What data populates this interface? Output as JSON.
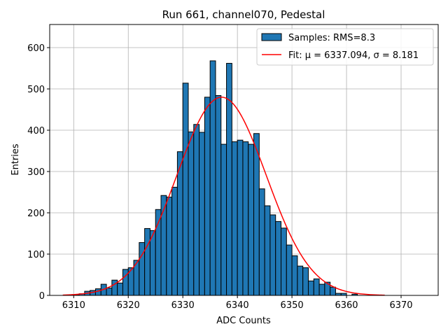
{
  "chart_data": {
    "type": "bar",
    "title": "Run 661, channel070, Pedestal",
    "xlabel": "ADC Counts",
    "ylabel": "Entries",
    "xlim": [
      6305.6,
      6376.8
    ],
    "ylim": [
      0,
      656
    ],
    "xticks": [
      6310,
      6320,
      6330,
      6340,
      6350,
      6360,
      6370
    ],
    "yticks": [
      0,
      100,
      200,
      300,
      400,
      500,
      600
    ],
    "grid": true,
    "legend_position": "top-right",
    "legend": [
      {
        "label": "Samples: RMS=8.3",
        "kind": "patch"
      },
      {
        "label": "Fit: μ = 6337.094, σ = 8.181",
        "kind": "line"
      }
    ],
    "series": [
      {
        "name": "Samples: RMS=8.3",
        "kind": "histogram",
        "bin_width": 1,
        "x": [
          6308,
          6309,
          6310,
          6311,
          6312,
          6313,
          6314,
          6315,
          6316,
          6317,
          6318,
          6319,
          6320,
          6321,
          6322,
          6323,
          6324,
          6325,
          6326,
          6327,
          6328,
          6329,
          6330,
          6331,
          6332,
          6333,
          6334,
          6335,
          6336,
          6337,
          6338,
          6339,
          6340,
          6341,
          6342,
          6343,
          6344,
          6345,
          6346,
          6347,
          6348,
          6349,
          6350,
          6351,
          6352,
          6353,
          6354,
          6355,
          6356,
          6357,
          6358,
          6359,
          6360,
          6361,
          6362,
          6363,
          6364,
          6365,
          6366,
          6367,
          6368,
          6369,
          6370,
          6371,
          6372,
          6373
        ],
        "values": [
          0,
          0,
          2,
          4,
          10,
          12,
          16,
          27,
          18,
          37,
          30,
          63,
          67,
          85,
          128,
          162,
          157,
          208,
          242,
          238,
          262,
          348,
          514,
          396,
          414,
          395,
          480,
          568,
          484,
          366,
          562,
          372,
          376,
          372,
          366,
          392,
          258,
          217,
          195,
          179,
          163,
          122,
          96,
          71,
          67,
          35,
          40,
          27,
          32,
          20,
          5,
          5,
          0,
          3,
          0,
          0,
          0,
          0,
          0,
          0,
          0,
          0,
          0,
          0,
          0,
          0
        ],
        "color": "#1f77b4",
        "edge_color": "#000000"
      },
      {
        "name": "Fit: μ = 6337.094, σ = 8.181",
        "kind": "line",
        "function": "gaussian",
        "mu": 6337.094,
        "sigma": 8.181,
        "amplitude": 480,
        "x_range": [
          6308,
          6367
        ],
        "color": "#ff0000"
      }
    ]
  }
}
